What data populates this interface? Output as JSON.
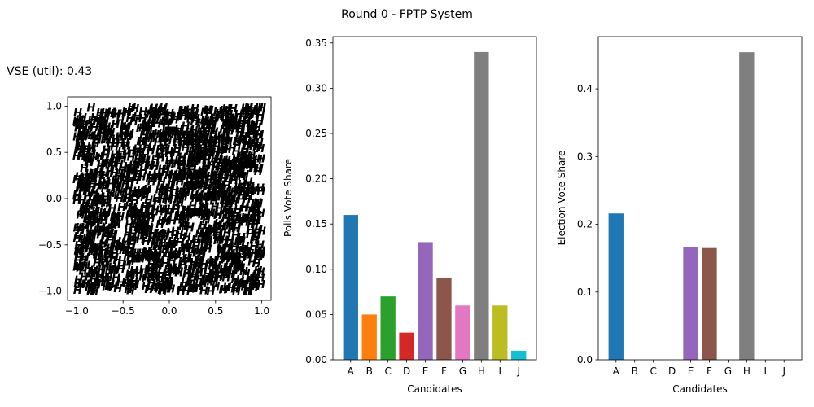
{
  "suptitle": "Round 0 - FPTP System",
  "chart_data": [
    {
      "type": "scatter",
      "title": "VSE (util): 0.43",
      "marker": "H",
      "xlim": [
        -1.1,
        1.1
      ],
      "ylim": [
        -1.1,
        1.1
      ],
      "xticks": [
        -1.0,
        -0.5,
        0.0,
        0.5,
        1.0
      ],
      "yticks": [
        -1.0,
        -0.5,
        0.0,
        0.5,
        1.0
      ],
      "xtick_labels": [
        "−1.0",
        "−0.5",
        "0.0",
        "0.5",
        "1.0"
      ],
      "ytick_labels": [
        "−1.0",
        "−0.5",
        "0.0",
        "0.5",
        "1.0"
      ],
      "xlabel": "",
      "ylabel": "",
      "series": [
        {
          "color": "#1f77b4",
          "seeds": [
            [
              -0.5,
              0.75
            ],
            [
              -0.2,
              0.8
            ],
            [
              0.05,
              0.55
            ],
            [
              -0.35,
              0.5
            ],
            [
              0.3,
              0.45
            ]
          ]
        },
        {
          "color": "#ff7f0e",
          "seeds": [
            [
              -0.35,
              -0.05
            ],
            [
              -0.25,
              0.05
            ]
          ]
        },
        {
          "color": "#2ca02c",
          "seeds": [
            [
              -0.85,
              0.6
            ],
            [
              -0.7,
              0.45
            ],
            [
              -0.9,
              0.85
            ]
          ]
        },
        {
          "color": "#d62728",
          "seeds": [
            [
              0.82,
              0.85
            ]
          ]
        },
        {
          "color": "#9467bd",
          "seeds": [
            [
              0.65,
              0.55
            ],
            [
              0.75,
              0.25
            ],
            [
              0.5,
              0.35
            ],
            [
              0.85,
              0.0
            ]
          ]
        },
        {
          "color": "#8c564b",
          "seeds": [
            [
              -0.75,
              -0.6
            ],
            [
              -0.5,
              -0.6
            ],
            [
              -0.85,
              -0.85
            ],
            [
              -0.55,
              -0.85
            ]
          ]
        },
        {
          "color": "#e377c2",
          "seeds": [
            [
              0.35,
              0.8
            ],
            [
              0.2,
              0.9
            ]
          ]
        },
        {
          "color": "#7f7f7f",
          "seeds": [
            [
              0.1,
              -0.15
            ],
            [
              0.45,
              -0.3
            ],
            [
              0.0,
              -0.55
            ],
            [
              0.3,
              -0.75
            ],
            [
              0.7,
              -0.5
            ],
            [
              -0.1,
              -0.85
            ],
            [
              0.6,
              -0.9
            ],
            [
              0.8,
              -0.1
            ],
            [
              -0.25,
              -0.35
            ],
            [
              0.3,
              0.1
            ]
          ]
        },
        {
          "color": "#bcbd22",
          "seeds": [
            [
              -0.85,
              0.05
            ],
            [
              -0.75,
              -0.2
            ]
          ]
        },
        {
          "color": "#17becf",
          "seeds": [
            [
              -0.3,
              0.25
            ],
            [
              -0.1,
              0.15
            ]
          ]
        }
      ]
    },
    {
      "type": "bar",
      "categories": [
        "A",
        "B",
        "C",
        "D",
        "E",
        "F",
        "G",
        "H",
        "I",
        "J"
      ],
      "values": [
        0.16,
        0.05,
        0.07,
        0.03,
        0.13,
        0.09,
        0.06,
        0.34,
        0.06,
        0.01
      ],
      "colors": [
        "#1f77b4",
        "#ff7f0e",
        "#2ca02c",
        "#d62728",
        "#9467bd",
        "#8c564b",
        "#e377c2",
        "#7f7f7f",
        "#bcbd22",
        "#17becf"
      ],
      "xlabel": "Candidates",
      "ylabel": "Polls Vote Share",
      "ylim": [
        0,
        0.357
      ],
      "yticks": [
        0.0,
        0.05,
        0.1,
        0.15,
        0.2,
        0.25,
        0.3,
        0.35
      ],
      "ytick_labels": [
        "0.00",
        "0.05",
        "0.10",
        "0.15",
        "0.20",
        "0.25",
        "0.30",
        "0.35"
      ]
    },
    {
      "type": "bar",
      "categories": [
        "A",
        "B",
        "C",
        "D",
        "E",
        "F",
        "G",
        "H",
        "I",
        "J"
      ],
      "values": [
        0.216,
        0,
        0,
        0,
        0.166,
        0.165,
        0,
        0.454,
        0,
        0
      ],
      "colors": [
        "#1f77b4",
        "#ff7f0e",
        "#2ca02c",
        "#d62728",
        "#9467bd",
        "#8c564b",
        "#e377c2",
        "#7f7f7f",
        "#bcbd22",
        "#17becf"
      ],
      "xlabel": "Candidates",
      "ylabel": "Election Vote Share",
      "ylim": [
        0,
        0.477
      ],
      "yticks": [
        0.0,
        0.1,
        0.2,
        0.3,
        0.4
      ],
      "ytick_labels": [
        "0.0",
        "0.1",
        "0.2",
        "0.3",
        "0.4"
      ]
    }
  ]
}
